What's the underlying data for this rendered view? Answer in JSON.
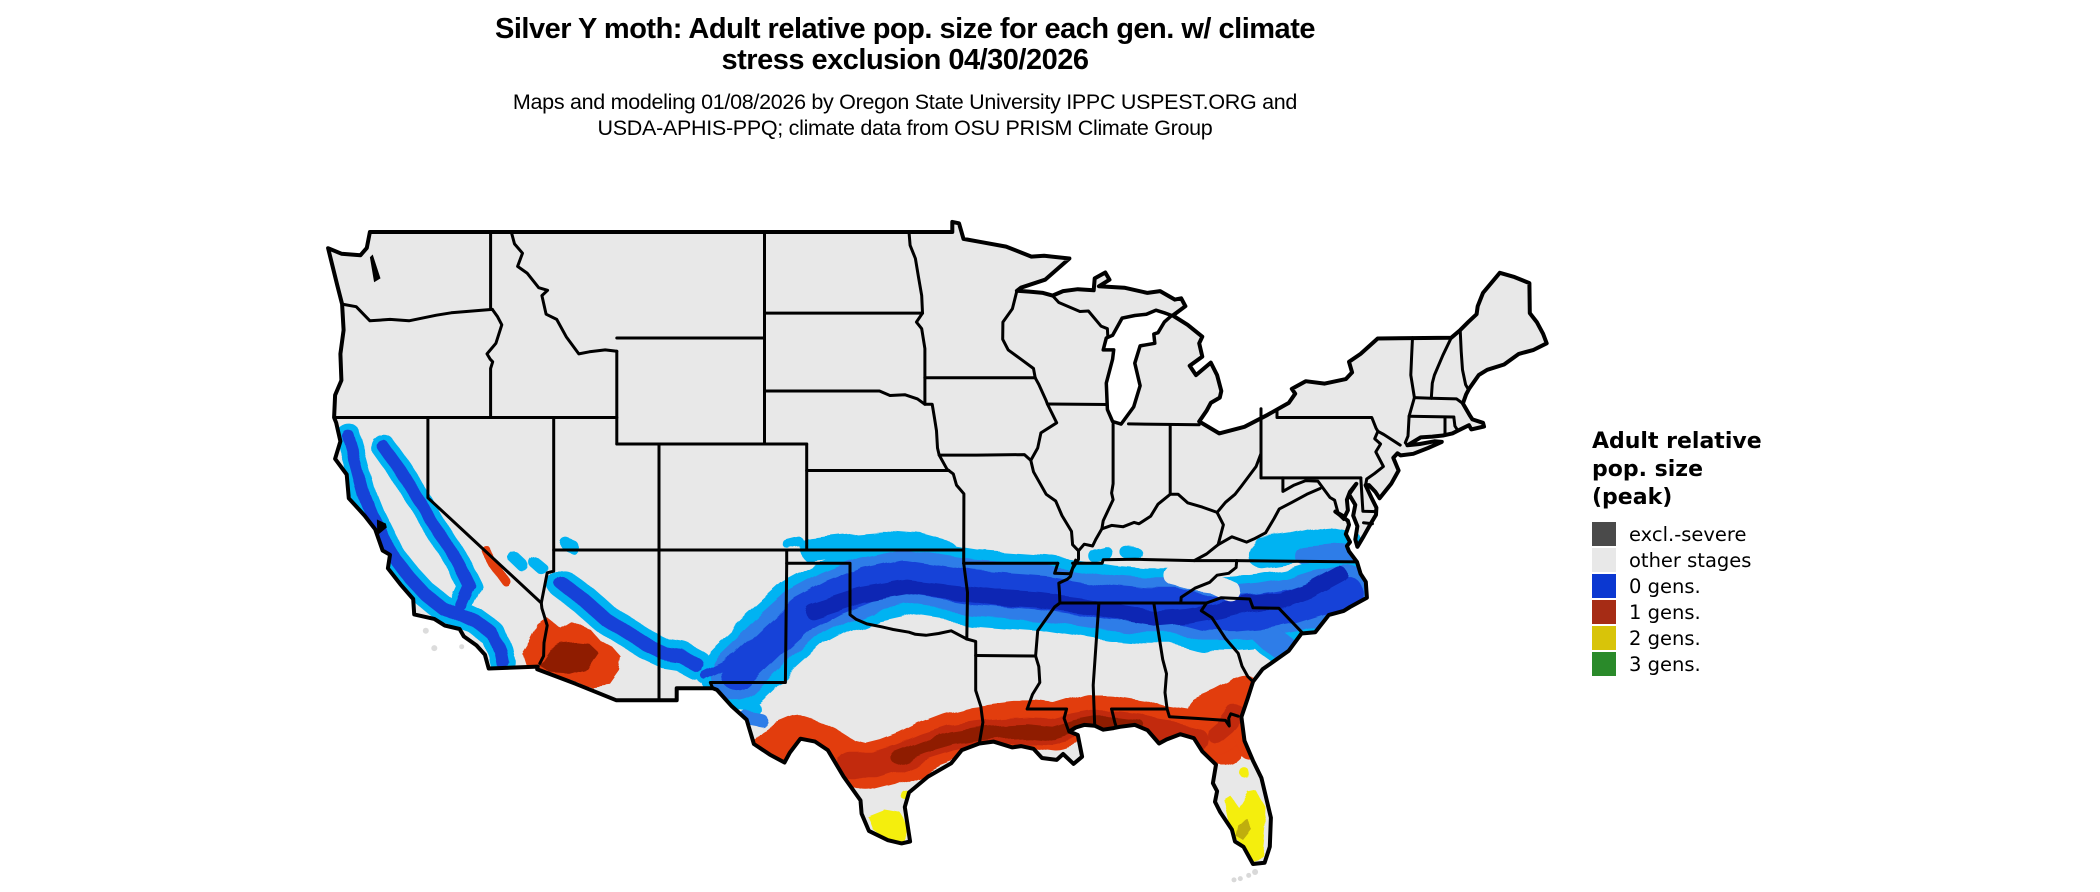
{
  "header": {
    "title_line1": "Silver Y moth: Adult relative pop. size for each gen. w/ climate",
    "title_line2": "stress exclusion 04/30/2026",
    "subtitle_line1": "Maps and modeling 01/08/2026 by Oregon State University IPPC USPEST.ORG and",
    "subtitle_line2": "USDA-APHIS-PPQ; climate data from OSU PRISM Climate Group"
  },
  "legend": {
    "title_line1": "Adult relative",
    "title_line2": "pop. size",
    "title_line3": "(peak)",
    "items": [
      {
        "label": "excl.-severe",
        "color": "#4a4a4a"
      },
      {
        "label": "other stages",
        "color": "#e8e8e8"
      },
      {
        "label": "0 gens.",
        "color": "#0b38d1"
      },
      {
        "label": "1 gens.",
        "color": "#a62c15"
      },
      {
        "label": "2 gens.",
        "color": "#d8c409"
      },
      {
        "label": "3 gens.",
        "color": "#2a8a2a"
      }
    ]
  },
  "map": {
    "land_color": "#e8e8e8",
    "state_border_color": "#000000",
    "background_color": "#ffffff",
    "ramp_0_gens": [
      "#00b3f2",
      "#2d7de8",
      "#1743d8",
      "#0a28b0"
    ],
    "ramp_1_gens": [
      "#e23c0d",
      "#c22b0a",
      "#8f1d05"
    ],
    "ramp_2_gens": [
      "#f4ee0e",
      "#bfae08"
    ],
    "regions_depicted": [
      "0 gens. band: southern Plains through Oklahoma, Arkansas, Tennessee to the Carolinas and coastal Virginia; also California coast ranges, Sierra foothills and central Arizona highlands",
      "1 gens. band: Gulf Coast from south Texas through Louisiana, Mississippi, Alabama to north Florida and coastal Georgia; also southwestern Arizona and the lower Colorado River desert",
      "2 gens.: southern tip of Texas and south Florida",
      "other stages: remainder of the conterminous United States"
    ]
  }
}
